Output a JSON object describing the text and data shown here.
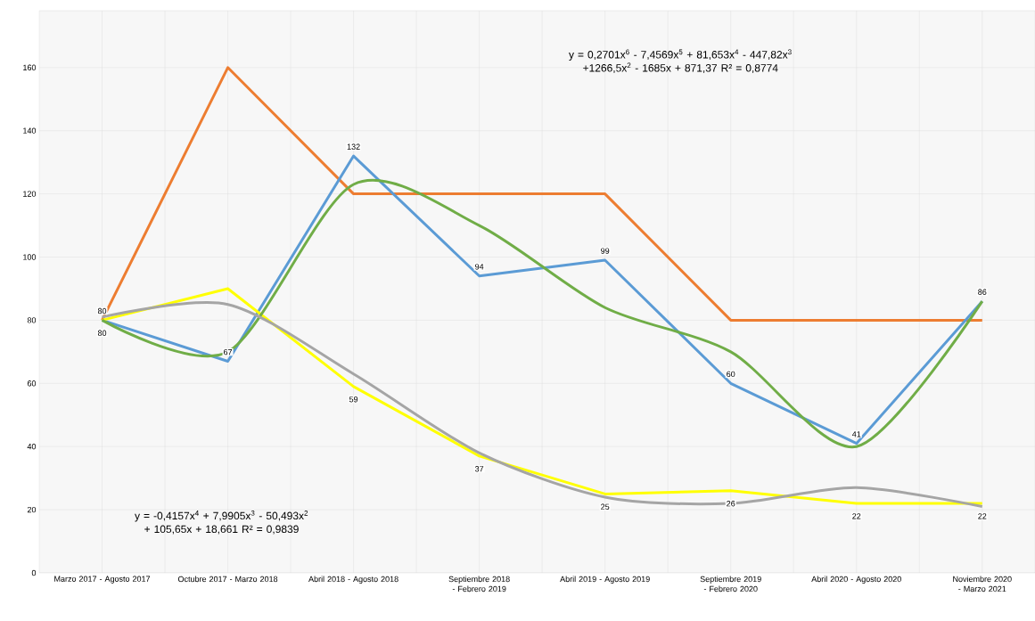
{
  "chart_data": {
    "type": "line",
    "categories": [
      "Marzo 2017 - Agosto 2017",
      "Octubre 2017 - Marzo 2018",
      "Abril 2018 - Agosto 2018",
      "Septiembre 2018 - Febrero 2019",
      "Abril 2019 - Agosto 2019",
      "Septiembre 2019 - Febrero 2020",
      "Abril 2020 - Agosto 2020",
      "Noviembre 2020 - Marzo 2021"
    ],
    "series": [
      {
        "color": "#ed7d31",
        "values": [
          80,
          160,
          120,
          120,
          120,
          80,
          80,
          80
        ]
      },
      {
        "color": "#5b9bd5",
        "values": [
          80,
          67,
          132,
          94,
          99,
          60,
          41,
          86
        ],
        "value_labels": [
          "80",
          "67",
          "132",
          "94",
          "99",
          "60",
          "41",
          "86"
        ]
      },
      {
        "color": "#ffff00",
        "values": [
          80,
          90,
          59,
          37,
          25,
          26,
          22,
          22
        ],
        "value_labels": [
          "80",
          null,
          "59",
          "37",
          "25",
          "26",
          "22",
          "22"
        ]
      },
      {
        "type": "line",
        "color": "#70ad47",
        "values": [
          80,
          70,
          123,
          110,
          84,
          70,
          40,
          86
        ]
      },
      {
        "type": "line",
        "color": "#a5a5a5",
        "values": [
          81,
          85,
          63,
          38,
          24,
          22,
          27,
          21
        ]
      }
    ],
    "ylim": [
      0,
      178
    ],
    "yticks": [
      0,
      20,
      40,
      60,
      80,
      100,
      120,
      140,
      160
    ],
    "grid": true,
    "marker": "none",
    "line_style": "solid",
    "annotations": [
      "y = 0,2701x$^{6}$ - 7,4569x$^{5}$ + 81,653x$^{4}$ - 447,82x$^{3}$ +1266,5x$^{2}$ - 1685x + 871,37 R² = 0,8774",
      "y = -0,4157x$^{4}$ + 7,9905x$^{3}$ - 50,493x$^{2}$ + 105,65x + 18,661 R² = 0,9839"
    ]
  }
}
